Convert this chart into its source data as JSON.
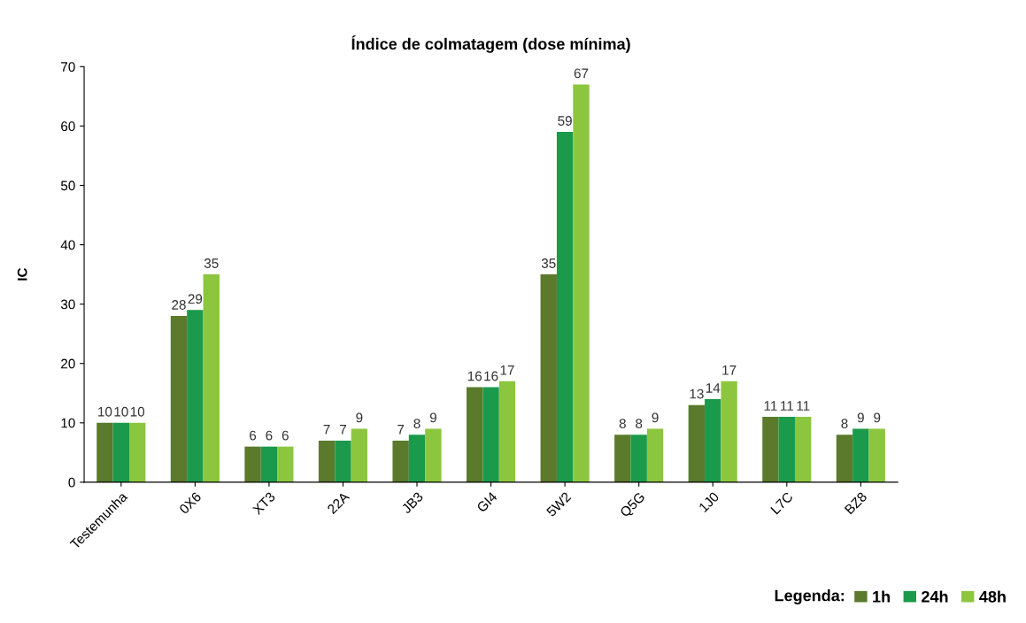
{
  "chart_data": {
    "type": "bar",
    "title": "Índice de colmatagem (dose mínima)",
    "ylabel": "IC",
    "legend_title": "Legenda:",
    "categories": [
      "Testemunha",
      "0X6",
      "XT3",
      "22A",
      "JB3",
      "GI4",
      "5W2",
      "Q5G",
      "1J0",
      "L7C",
      "BZ8"
    ],
    "series": [
      {
        "name": "1h",
        "color": "#5b7a2c",
        "values": [
          10,
          28,
          6,
          7,
          7,
          16,
          35,
          8,
          13,
          11,
          8
        ]
      },
      {
        "name": "24h",
        "color": "#1b9a4c",
        "values": [
          10,
          29,
          6,
          7,
          8,
          16,
          59,
          8,
          14,
          11,
          9
        ]
      },
      {
        "name": "48h",
        "color": "#8cc63f",
        "values": [
          10,
          35,
          6,
          9,
          9,
          17,
          67,
          9,
          17,
          11,
          9
        ]
      }
    ],
    "ylim": [
      0,
      70
    ],
    "yticks": [
      0,
      10,
      20,
      30,
      40,
      50,
      60,
      70
    ],
    "grid": false,
    "data_labels": true,
    "legend": "bottom right"
  }
}
